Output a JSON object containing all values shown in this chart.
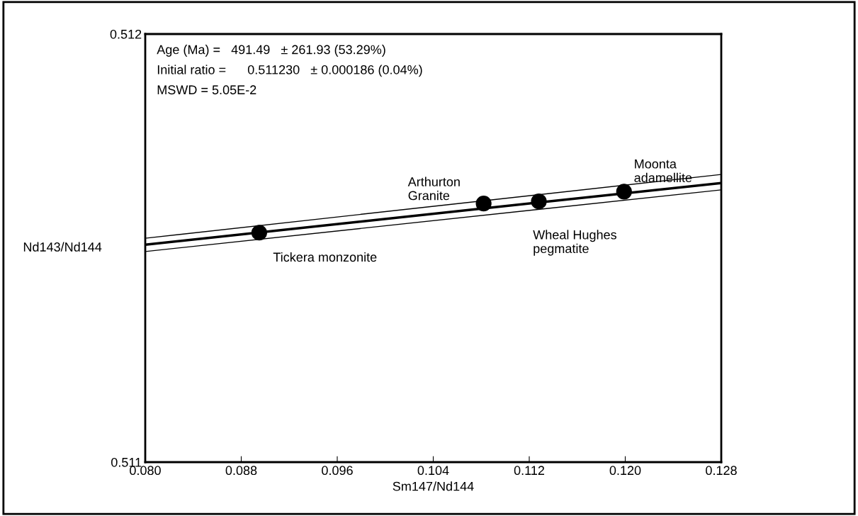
{
  "chart_data": {
    "type": "scatter",
    "xlabel": "Sm147/Nd144",
    "ylabel": "Nd143/Nd144",
    "xlim": [
      0.08,
      0.128
    ],
    "xticks": [
      {
        "value": 0.08,
        "label": "0.080"
      },
      {
        "value": 0.088,
        "label": "0.088"
      },
      {
        "value": 0.096,
        "label": "0.096"
      },
      {
        "value": 0.104,
        "label": "0.104"
      },
      {
        "value": 0.112,
        "label": "0.112"
      },
      {
        "value": 0.12,
        "label": "0.120"
      },
      {
        "value": 0.128,
        "label": "0.128"
      }
    ],
    "ylim": [
      0.511,
      0.512
    ],
    "yticks": [
      0.511,
      0.512
    ],
    "grid": false,
    "legend": false,
    "series": [
      {
        "marker": "circle",
        "color": "#000000",
        "x": [
          0.0895,
          0.1082,
          0.1128,
          0.1199
        ],
        "values": [
          0.511536,
          0.511604,
          0.511609,
          0.511632
        ]
      },
      {
        "type": "line",
        "marker": "none",
        "color": "#000000",
        "x": [
          0.08,
          0.128
        ],
        "values": [
          0.511508,
          0.511652
        ]
      },
      {
        "type": "line",
        "marker": "none",
        "color": "#000000",
        "x": [
          0.08,
          0.128
        ],
        "values": [
          0.511523,
          0.511672
        ]
      },
      {
        "type": "line",
        "marker": "none",
        "color": "#000000",
        "x": [
          0.08,
          0.128
        ],
        "values": [
          0.511492,
          0.511636
        ]
      }
    ],
    "annotations": [
      "Age (Ma) =   491.49   ± 261.93 (53.29%)",
      "Initial ratio =      0.511230   ± 0.000186 (0.04%)",
      "MSWD = 5.05E-2",
      {
        "text": "Tickera monzonite",
        "x": 0.0895,
        "y": 0.511536
      },
      {
        "text": "Arthurton\nGranite",
        "x": 0.1082,
        "y": 0.511604
      },
      {
        "text": "Wheal Hughes\npegmatite",
        "x": 0.1128,
        "y": 0.511609
      },
      {
        "text": "Moonta\nadamellite",
        "x": 0.1199,
        "y": 0.511632
      }
    ]
  }
}
